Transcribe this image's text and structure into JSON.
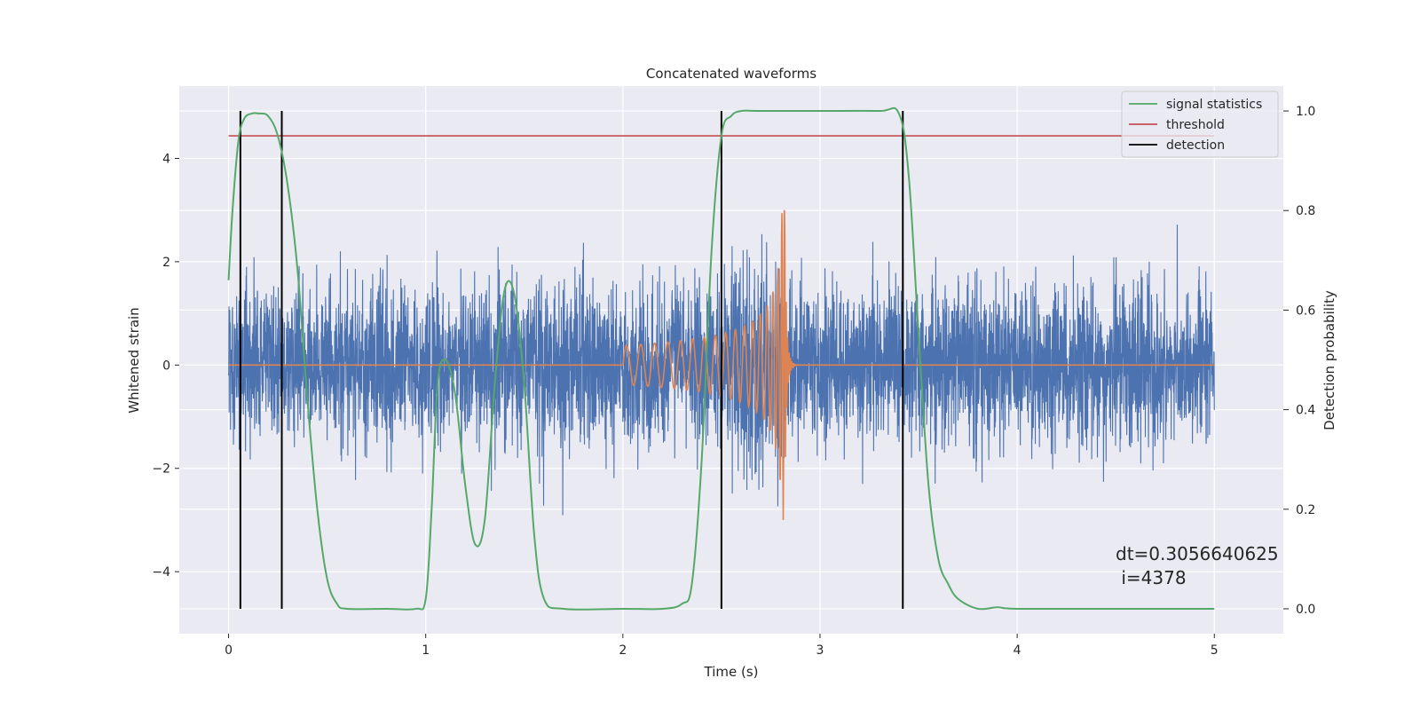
{
  "chart_data": {
    "type": "line",
    "title": "Concatenated waveforms",
    "xlabel": "Time (s)",
    "ylabel": "Whitened strain",
    "y2label": "Detection probability",
    "xlim": [
      -0.25,
      5.35
    ],
    "ylim": [
      -5.2,
      5.4
    ],
    "y2lim": [
      -0.05,
      1.05
    ],
    "xticks": [
      0,
      1,
      2,
      3,
      4,
      5
    ],
    "xtick_labels": [
      "0",
      "1",
      "2",
      "3",
      "4",
      "5"
    ],
    "yticks": [
      -4,
      -2,
      0,
      2,
      4
    ],
    "ytick_labels": [
      "−4",
      "−2",
      "0",
      "2",
      "4"
    ],
    "y2ticks": [
      0.0,
      0.2,
      0.4,
      0.6,
      0.8,
      1.0
    ],
    "y2tick_labels": [
      "0.0",
      "0.2",
      "0.4",
      "0.6",
      "0.8",
      "1.0"
    ],
    "grid": true,
    "legend_position": "top-right",
    "legend": [
      "signal statistics",
      "threshold",
      "detection"
    ],
    "annotation": {
      "line1": "dt=0.3056640625",
      "line2": " i=4378"
    },
    "colors": {
      "strain": "#4c72b0",
      "template": "#dd8452",
      "signal_statistics": "#55a868",
      "threshold": "#c44e52",
      "detection": "#000000",
      "axes_bg": "#eaeaf2",
      "grid": "#ffffff"
    },
    "series": [
      {
        "axis": "right",
        "x": [
          0.0,
          0.02,
          0.05,
          0.08,
          0.12,
          0.15,
          0.2,
          0.25,
          0.3,
          0.35,
          0.4,
          0.45,
          0.5,
          0.55,
          0.6,
          0.8,
          0.95,
          1.0,
          1.03,
          1.06,
          1.1,
          1.15,
          1.2,
          1.25,
          1.3,
          1.35,
          1.4,
          1.45,
          1.5,
          1.55,
          1.6,
          1.7,
          2.0,
          2.2,
          2.3,
          2.35,
          2.4,
          2.45,
          2.5,
          2.55,
          2.6,
          2.7,
          3.0,
          3.3,
          3.4,
          3.45,
          3.5,
          3.55,
          3.6,
          3.65,
          3.7,
          3.8,
          3.9,
          4.0,
          4.5,
          5.0
        ],
        "values": [
          0.66,
          0.8,
          0.94,
          0.985,
          0.995,
          0.995,
          0.99,
          0.95,
          0.85,
          0.68,
          0.42,
          0.2,
          0.06,
          0.01,
          0.0,
          0.0,
          0.0,
          0.02,
          0.2,
          0.45,
          0.5,
          0.43,
          0.25,
          0.13,
          0.18,
          0.45,
          0.64,
          0.63,
          0.45,
          0.15,
          0.02,
          0.0,
          0.0,
          0.0,
          0.01,
          0.05,
          0.3,
          0.72,
          0.95,
          0.99,
          1.0,
          1.0,
          1.0,
          1.0,
          0.995,
          0.87,
          0.55,
          0.25,
          0.1,
          0.05,
          0.02,
          0.0,
          0.003,
          0.0,
          0.0,
          0.0
        ]
      },
      {
        "name": "threshold",
        "axis": "right",
        "x": [
          0.0,
          5.0
        ],
        "values": [
          0.95,
          0.95
        ]
      }
    ],
    "detections": [
      0.06,
      0.27,
      2.5,
      3.42
    ]
  }
}
